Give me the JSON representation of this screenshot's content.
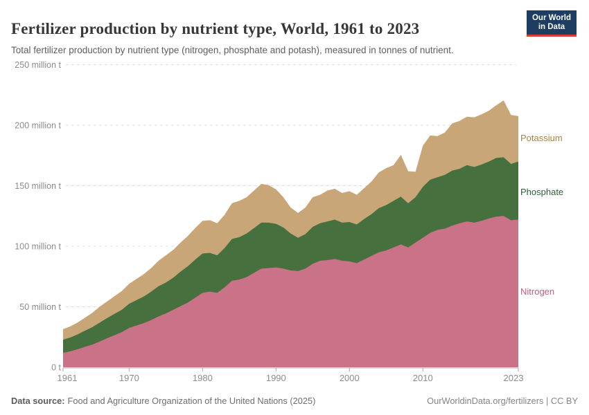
{
  "header": {
    "title": "Fertilizer production by nutrient type, World, 1961 to 2023",
    "subtitle": "Total fertilizer production by nutrient type (nitrogen, phosphate and potash), measured in tonnes of nutrient.",
    "logo": {
      "line1": "Our World",
      "line2": "in Data",
      "bg_color": "#1d3d63",
      "accent_color": "#d93d33"
    }
  },
  "footer": {
    "source_label": "Data source:",
    "source_text": "Food and Agriculture Organization of the United Nations (2025)",
    "credit": "OurWorldinData.org/fertilizers | CC BY"
  },
  "chart_data": {
    "type": "area",
    "stacked": true,
    "title": "Fertilizer production by nutrient type, World, 1961 to 2023",
    "xlabel": "",
    "ylabel": "",
    "unit": "million tonnes of nutrient",
    "ylim": [
      0,
      250
    ],
    "grid": "horizontal-dashed",
    "legend_position": "right-edge-inline-labels",
    "x": [
      1961,
      1962,
      1963,
      1964,
      1965,
      1966,
      1967,
      1968,
      1969,
      1970,
      1971,
      1972,
      1973,
      1974,
      1975,
      1976,
      1977,
      1978,
      1979,
      1980,
      1981,
      1982,
      1983,
      1984,
      1985,
      1986,
      1987,
      1988,
      1989,
      1990,
      1991,
      1992,
      1993,
      1994,
      1995,
      1996,
      1997,
      1998,
      1999,
      2000,
      2001,
      2002,
      2003,
      2004,
      2005,
      2006,
      2007,
      2008,
      2009,
      2010,
      2011,
      2012,
      2013,
      2014,
      2015,
      2016,
      2017,
      2018,
      2019,
      2020,
      2021,
      2022,
      2023
    ],
    "x_ticks": [
      1961,
      1970,
      1980,
      1990,
      2000,
      2010,
      2023
    ],
    "y_ticks": [
      0,
      50,
      100,
      150,
      200,
      250
    ],
    "y_tick_labels": [
      "0 t",
      "50 million t",
      "100 million t",
      "150 million t",
      "200 million t",
      "250 million t"
    ],
    "series": [
      {
        "name": "Nitrogen",
        "color": "#ca7287",
        "label_color": "#c85b7f",
        "values": [
          11.9,
          13.2,
          14.9,
          16.9,
          18.8,
          21.3,
          24.0,
          26.5,
          29.0,
          32.5,
          34.5,
          36.5,
          39.0,
          42.0,
          44.5,
          47.5,
          50.5,
          53.5,
          57.5,
          61.5,
          62.5,
          61.5,
          66.0,
          71.5,
          72.5,
          74.5,
          78.0,
          81.5,
          82.0,
          82.5,
          81.5,
          80.0,
          79.5,
          81.5,
          85.5,
          88.0,
          88.5,
          89.5,
          88.0,
          87.5,
          86.0,
          89.0,
          92.0,
          95.0,
          96.5,
          99.0,
          101.5,
          99.0,
          103.0,
          107.0,
          111.0,
          113.5,
          114.5,
          117.0,
          119.0,
          120.5,
          119.5,
          121.0,
          123.0,
          124.5,
          125.0,
          121.5,
          122.0
        ]
      },
      {
        "name": "Phosphate",
        "color": "#47703f",
        "label_color": "#2f5e34",
        "values": [
          10.9,
          11.4,
          12.3,
          13.4,
          14.4,
          15.6,
          16.6,
          17.6,
          18.5,
          20.0,
          21.0,
          22.0,
          23.5,
          25.0,
          25.5,
          26.5,
          28.5,
          30.0,
          31.5,
          32.5,
          32.0,
          31.0,
          32.5,
          34.5,
          35.0,
          36.0,
          37.0,
          38.0,
          37.5,
          36.0,
          34.0,
          30.5,
          27.5,
          28.5,
          30.5,
          31.0,
          32.0,
          32.5,
          31.5,
          32.5,
          32.0,
          33.5,
          34.5,
          36.5,
          37.5,
          38.5,
          39.5,
          36.5,
          37.5,
          42.0,
          44.0,
          43.5,
          44.5,
          45.5,
          45.0,
          46.5,
          46.0,
          46.5,
          47.0,
          48.5,
          48.5,
          46.5,
          48.0
        ]
      },
      {
        "name": "Potassium",
        "color": "#c8a678",
        "label_color": "#a9823f",
        "values": [
          8.7,
          9.2,
          9.9,
          10.7,
          11.9,
          13.2,
          13.8,
          14.6,
          15.5,
          16.5,
          17.5,
          18.5,
          19.5,
          21.0,
          22.5,
          23.0,
          24.0,
          25.0,
          26.0,
          27.0,
          27.0,
          26.5,
          27.5,
          29.5,
          30.0,
          30.0,
          31.0,
          32.0,
          31.0,
          28.5,
          25.0,
          21.5,
          20.5,
          22.0,
          24.5,
          23.5,
          25.5,
          25.5,
          24.5,
          25.5,
          24.5,
          25.5,
          27.0,
          29.5,
          30.5,
          29.5,
          34.5,
          26.5,
          21.0,
          34.0,
          36.5,
          34.0,
          35.0,
          39.0,
          39.5,
          40.0,
          41.0,
          41.5,
          42.0,
          43.5,
          47.0,
          40.5,
          37.5
        ]
      }
    ]
  }
}
